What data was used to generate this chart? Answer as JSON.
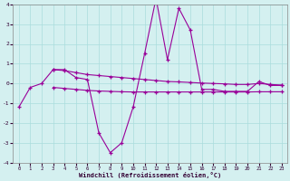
{
  "xlabel": "Windchill (Refroidissement éolien,°C)",
  "x": [
    0,
    1,
    2,
    3,
    4,
    5,
    6,
    7,
    8,
    9,
    10,
    11,
    12,
    13,
    14,
    15,
    16,
    17,
    18,
    19,
    20,
    21,
    22,
    23
  ],
  "line1": [
    -1.2,
    -0.2,
    0.0,
    0.7,
    0.7,
    0.3,
    0.2,
    -2.5,
    -3.5,
    -3.0,
    -1.2,
    1.5,
    4.3,
    1.2,
    3.8,
    2.7,
    -0.3,
    -0.3,
    -0.4,
    -0.4,
    -0.4,
    0.1,
    -0.1,
    -0.1
  ],
  "line2_x": [
    3,
    4,
    5,
    6,
    7,
    8,
    9,
    10,
    11,
    12,
    13,
    14,
    15,
    16,
    17,
    18,
    19,
    20,
    21,
    22,
    23
  ],
  "line2_y": [
    0.7,
    0.65,
    0.55,
    0.45,
    0.4,
    0.35,
    0.3,
    0.25,
    0.2,
    0.15,
    0.1,
    0.08,
    0.05,
    0.02,
    0.0,
    -0.02,
    -0.05,
    -0.05,
    0.0,
    -0.05,
    -0.08
  ],
  "line3_x": [
    3,
    4,
    5,
    6,
    7,
    8,
    9,
    10,
    11,
    12,
    13,
    14,
    15,
    16,
    17,
    18,
    19,
    20,
    21,
    22,
    23
  ],
  "line3_y": [
    -0.2,
    -0.25,
    -0.3,
    -0.35,
    -0.38,
    -0.4,
    -0.42,
    -0.43,
    -0.43,
    -0.43,
    -0.43,
    -0.43,
    -0.43,
    -0.43,
    -0.43,
    -0.43,
    -0.43,
    -0.43,
    -0.42,
    -0.42,
    -0.42
  ],
  "bg_color": "#d4f0f0",
  "grid_color": "#aadddd",
  "line_color": "#990099",
  "ylim": [
    -4,
    4
  ],
  "xlim": [
    -0.5,
    23.5
  ],
  "yticks": [
    -4,
    -3,
    -2,
    -1,
    0,
    1,
    2,
    3,
    4
  ],
  "xticks": [
    0,
    1,
    2,
    3,
    4,
    5,
    6,
    7,
    8,
    9,
    10,
    11,
    12,
    13,
    14,
    15,
    16,
    17,
    18,
    19,
    20,
    21,
    22,
    23
  ]
}
